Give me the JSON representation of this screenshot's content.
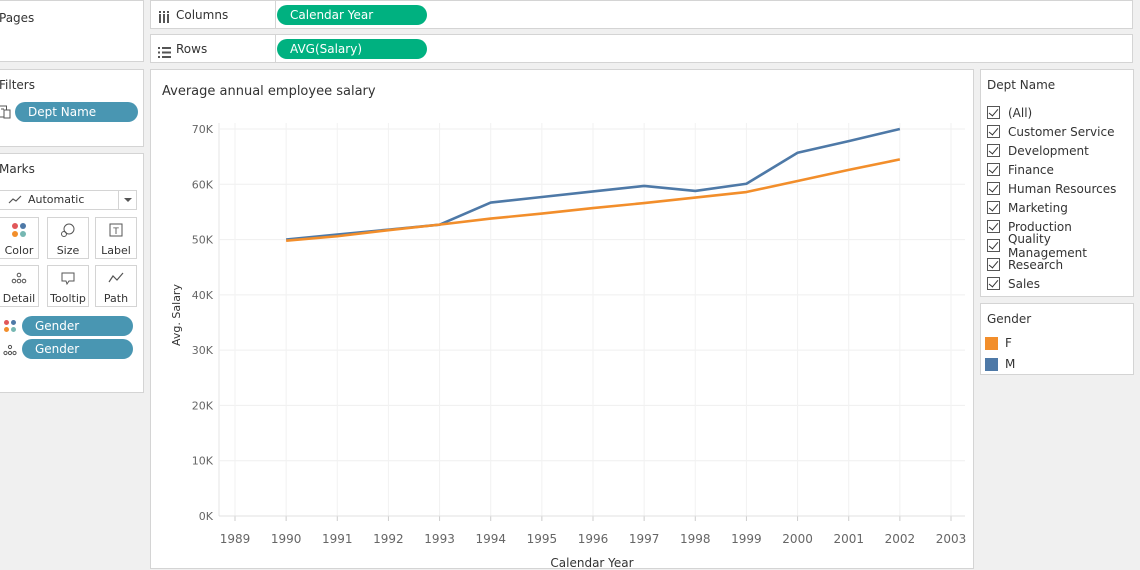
{
  "pages": {
    "title": "Pages"
  },
  "filters": {
    "title": "Filters",
    "pill": "Dept Name"
  },
  "marks": {
    "title": "Marks",
    "mark_type": "Automatic",
    "buttons": [
      "Color",
      "Size",
      "Label",
      "Detail",
      "Tooltip",
      "Path"
    ],
    "pills": [
      "Gender",
      "Gender"
    ]
  },
  "shelves": {
    "columns_label": "Columns",
    "columns_pill": "Calendar Year",
    "rows_label": "Rows",
    "rows_pill": "AVG(Salary)"
  },
  "dept_filter": {
    "title": "Dept Name",
    "items": [
      "(All)",
      "Customer Service",
      "Development",
      "Finance",
      "Human Resources",
      "Marketing",
      "Production",
      "Quality Management",
      "Research",
      "Sales"
    ]
  },
  "gender_legend": {
    "title": "Gender",
    "items": [
      {
        "label": "F",
        "color": "#f28e2b"
      },
      {
        "label": "M",
        "color": "#4e79a7"
      }
    ]
  },
  "chart_data": {
    "type": "line",
    "title": "Average annual employee salary",
    "xlabel": "Calendar Year",
    "ylabel": "Avg. Salary",
    "x_ticks": [
      "1989",
      "1990",
      "1991",
      "1992",
      "1993",
      "1994",
      "1995",
      "1996",
      "1997",
      "1998",
      "1999",
      "2000",
      "2001",
      "2002",
      "2003"
    ],
    "y_ticks": [
      "0K",
      "10K",
      "20K",
      "30K",
      "40K",
      "50K",
      "60K",
      "70K"
    ],
    "xlim": [
      1989,
      2003
    ],
    "ylim": [
      0,
      70000
    ],
    "grid": true,
    "x": [
      1990,
      1991,
      1992,
      1993,
      1994,
      1995,
      1996,
      1997,
      1998,
      1999,
      2000,
      2001,
      2002
    ],
    "series": [
      {
        "name": "M",
        "color": "#4e79a7",
        "values": [
          50000,
          50900,
          51800,
          52700,
          56700,
          57700,
          58700,
          59700,
          58800,
          60100,
          65700,
          67800,
          70000
        ]
      },
      {
        "name": "F",
        "color": "#f28e2b",
        "values": [
          49800,
          50600,
          51700,
          52700,
          53800,
          54700,
          55700,
          56600,
          57600,
          58600,
          60600,
          62600,
          64500
        ]
      }
    ]
  }
}
